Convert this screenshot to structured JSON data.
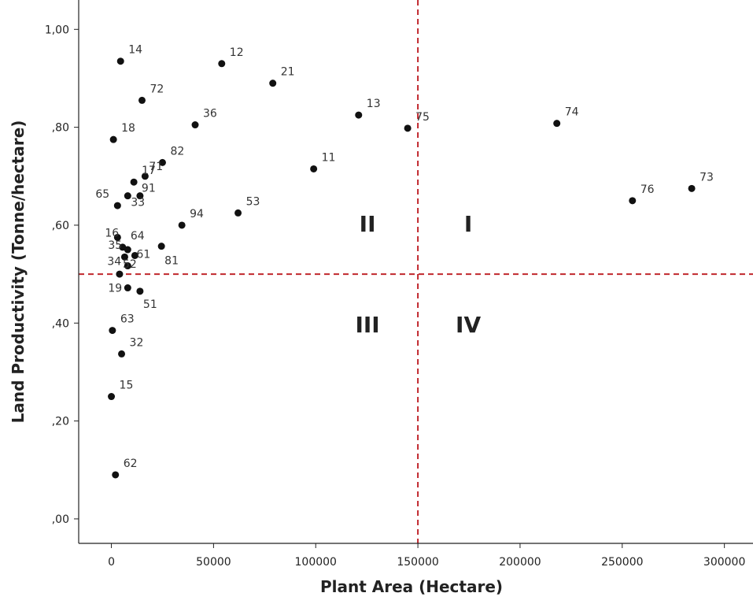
{
  "chart_data": {
    "type": "scatter",
    "title": "",
    "xlabel": "Plant Area (Hectare)",
    "ylabel": "Land Productivity (Tonne/hectare)",
    "xlim": [
      -16000,
      314000
    ],
    "ylim": [
      -0.05,
      1.06
    ],
    "x_ticks": [
      0,
      50000,
      100000,
      150000,
      200000,
      250000,
      300000
    ],
    "x_tick_labels": [
      "0",
      "50000",
      "100000",
      "150000",
      "200000",
      "250000",
      "300000"
    ],
    "y_ticks": [
      0,
      0.2,
      0.4,
      0.6,
      0.8,
      1.0
    ],
    "y_tick_labels": [
      ",00",
      ",20",
      ",40",
      ",60",
      ",80",
      "1,00"
    ],
    "grid": false,
    "reference_lines": {
      "x": 150000,
      "y": 0.5,
      "color": "#c0272d",
      "style": "dashed"
    },
    "quadrants": [
      "I",
      "II",
      "III",
      "IV"
    ],
    "points": [
      {
        "label": "14",
        "x": 4500,
        "y": 0.935
      },
      {
        "label": "12",
        "x": 54000,
        "y": 0.93
      },
      {
        "label": "21",
        "x": 79000,
        "y": 0.89
      },
      {
        "label": "72",
        "x": 15000,
        "y": 0.855
      },
      {
        "label": "36",
        "x": 41000,
        "y": 0.805
      },
      {
        "label": "13",
        "x": 121000,
        "y": 0.825
      },
      {
        "label": "75",
        "x": 145000,
        "y": 0.798
      },
      {
        "label": "74",
        "x": 218000,
        "y": 0.808
      },
      {
        "label": "18",
        "x": 1000,
        "y": 0.775
      },
      {
        "label": "82",
        "x": 25000,
        "y": 0.728
      },
      {
        "label": "11",
        "x": 99000,
        "y": 0.715
      },
      {
        "label": "17",
        "x": 11000,
        "y": 0.688
      },
      {
        "label": "71",
        "x": 16500,
        "y": 0.7
      },
      {
        "label": "65",
        "x": 3000,
        "y": 0.64
      },
      {
        "label": "33",
        "x": 8000,
        "y": 0.66
      },
      {
        "label": "91",
        "x": 14000,
        "y": 0.66
      },
      {
        "label": "53",
        "x": 62000,
        "y": 0.625
      },
      {
        "label": "94",
        "x": 34500,
        "y": 0.6
      },
      {
        "label": "76",
        "x": 255000,
        "y": 0.65
      },
      {
        "label": "73",
        "x": 284000,
        "y": 0.675
      },
      {
        "label": "16",
        "x": 3000,
        "y": 0.575
      },
      {
        "label": "64",
        "x": 5500,
        "y": 0.555
      },
      {
        "label": "35",
        "x": 8000,
        "y": 0.55
      },
      {
        "label": "61",
        "x": 6500,
        "y": 0.535
      },
      {
        "label": "81",
        "x": 24500,
        "y": 0.557
      },
      {
        "label": "",
        "x": 11500,
        "y": 0.538
      },
      {
        "label": "34",
        "x": 8000,
        "y": 0.517
      },
      {
        "label": "52",
        "x": 4000,
        "y": 0.5
      },
      {
        "label": "19",
        "x": 8000,
        "y": 0.472
      },
      {
        "label": "51",
        "x": 14000,
        "y": 0.465
      },
      {
        "label": "63",
        "x": 500,
        "y": 0.385
      },
      {
        "label": "32",
        "x": 5000,
        "y": 0.337
      },
      {
        "label": "15",
        "x": 0,
        "y": 0.25
      },
      {
        "label": "62",
        "x": 2000,
        "y": 0.09
      }
    ]
  }
}
